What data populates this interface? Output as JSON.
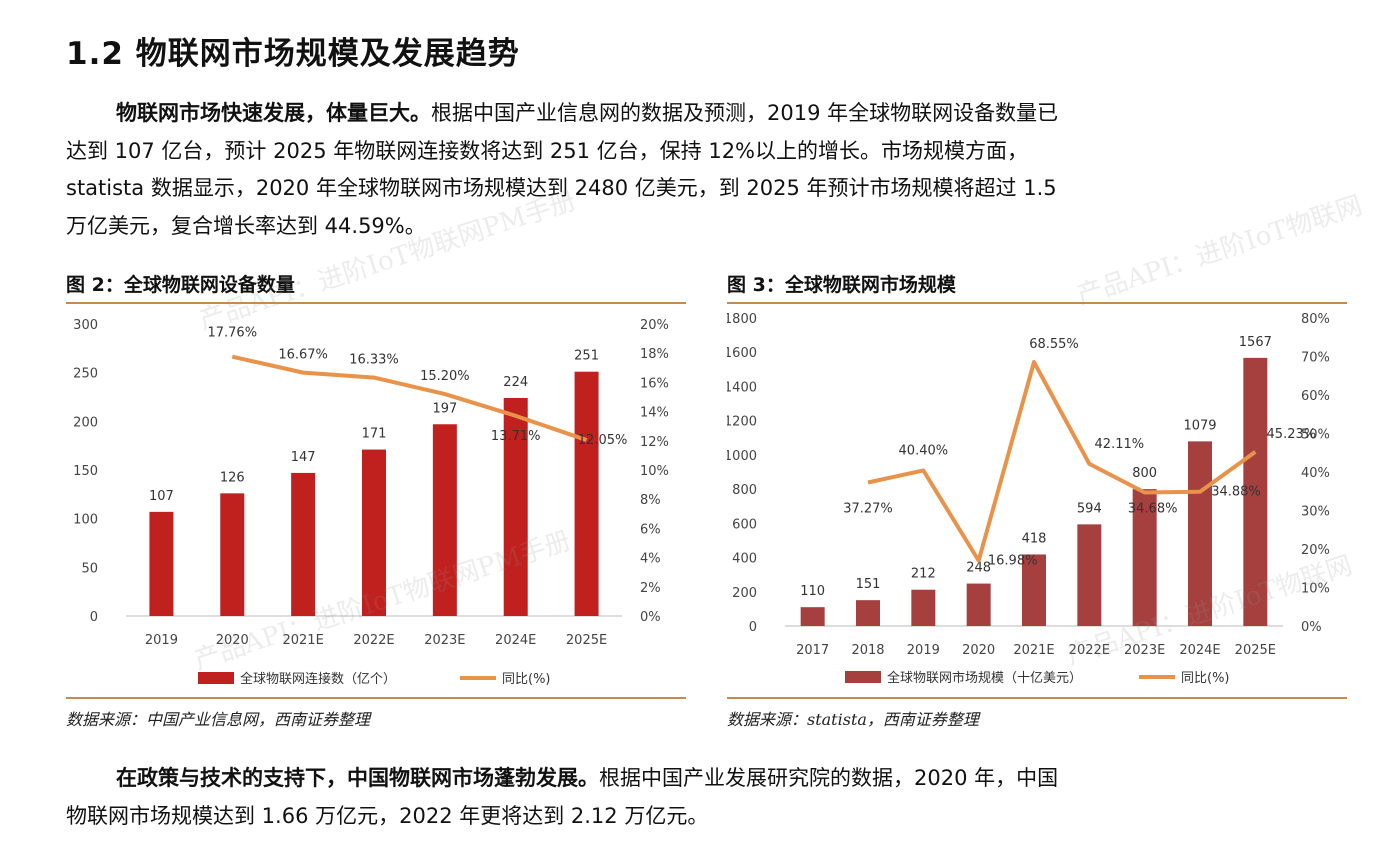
{
  "section": {
    "title": "1.2 物联网市场规模及发展趋势"
  },
  "paragraph1": {
    "lead": "物联网市场快速发展，体量巨大。",
    "body": "根据中国产业信息网的数据及预测，2019 年全球物联网设备数量已达到 107 亿台，预计 2025 年物联网连接数将达到 251 亿台，保持 12%以上的增长。市场规模方面，statista 数据显示，2020 年全球物联网市场规模达到 2480 亿美元，到 2025 年预计市场规模将超过 1.5 万亿美元，复合增长率达到 44.59%。"
  },
  "figure2": {
    "title": "图 2：全球物联网设备数量",
    "source": "数据来源：中国产业信息网，西南证券整理"
  },
  "figure3": {
    "title": "图 3：全球物联网市场规模",
    "source": "数据来源：statista，西南证券整理"
  },
  "paragraph2": {
    "lead": "在政策与技术的支持下，中国物联网市场蓬勃发展。",
    "body": "根据中国产业发展研究院的数据，2020 年，中国物联网市场规模达到 1.66 万亿元，2022 年更将达到 2.12 万亿元。"
  },
  "watermarks": {
    "text1": "产品API：进阶IoT物联网PM手册",
    "text2": "产品API：进阶IoT物联网",
    "text3": "产品API：进阶IoT物联网PM手册",
    "text4": "产品API：进阶IoT物联网"
  },
  "colors": {
    "bar_red": "#c0201e",
    "bar_brown": "#a5403e",
    "line_orange": "#e8924a",
    "rule": "#c88a4a"
  },
  "chart_data": [
    {
      "type": "bar",
      "categories": [
        "2019",
        "2020",
        "2021E",
        "2022E",
        "2023E",
        "2024E",
        "2025E"
      ],
      "series": [
        {
          "name": "全球物联网连接数（亿个）",
          "kind": "bar",
          "axis": "left",
          "values": [
            107,
            126,
            147,
            171,
            197,
            224,
            251
          ],
          "labels": [
            "107",
            "126",
            "147",
            "171",
            "197",
            "224",
            "251"
          ]
        },
        {
          "name": "同比(%)",
          "kind": "line",
          "axis": "right",
          "values": [
            null,
            17.76,
            16.67,
            16.33,
            15.2,
            13.71,
            12.05
          ],
          "labels": [
            "",
            "17.76%",
            "16.67%",
            "16.33%",
            "15.20%",
            "13.71%",
            "12.05%"
          ]
        }
      ],
      "ylim": [
        0,
        300
      ],
      "yticks": [
        "0",
        "50",
        "100",
        "150",
        "200",
        "250",
        "300"
      ],
      "y2lim": [
        0,
        20
      ],
      "y2ticks": [
        "0%",
        "2%",
        "4%",
        "6%",
        "8%",
        "10%",
        "12%",
        "14%",
        "16%",
        "18%",
        "20%"
      ],
      "legend": {
        "bar": "全球物联网连接数（亿个）",
        "line": "同比(%)",
        "position": "bottom"
      }
    },
    {
      "type": "bar",
      "categories": [
        "2017",
        "2018",
        "2019",
        "2020",
        "2021E",
        "2022E",
        "2023E",
        "2024E",
        "2025E"
      ],
      "series": [
        {
          "name": "全球物联网市场规模（十亿美元）",
          "kind": "bar",
          "axis": "left",
          "values": [
            110,
            151,
            212,
            248,
            418,
            594,
            800,
            1079,
            1567
          ],
          "labels": [
            "110",
            "151",
            "212",
            "248",
            "418",
            "594",
            "800",
            "1079",
            "1567"
          ]
        },
        {
          "name": "同比(%)",
          "kind": "line",
          "axis": "right",
          "values": [
            null,
            37.27,
            40.4,
            16.98,
            68.55,
            42.11,
            34.68,
            34.88,
            45.23
          ],
          "labels": [
            "",
            "37.27%",
            "40.40%",
            "16.98%",
            "68.55%",
            "42.11%",
            "34.68%",
            "34.88%",
            "45.23%"
          ]
        }
      ],
      "ylim": [
        0,
        1800
      ],
      "yticks": [
        "0",
        "200",
        "400",
        "600",
        "800",
        "1000",
        "1200",
        "1400",
        "1600",
        "1800"
      ],
      "y2lim": [
        0,
        80
      ],
      "y2ticks": [
        "0%",
        "10%",
        "20%",
        "30%",
        "40%",
        "50%",
        "60%",
        "70%",
        "80%"
      ],
      "legend": {
        "bar": "全球物联网市场规模（十亿美元）",
        "line": "同比(%)",
        "position": "bottom"
      }
    }
  ]
}
